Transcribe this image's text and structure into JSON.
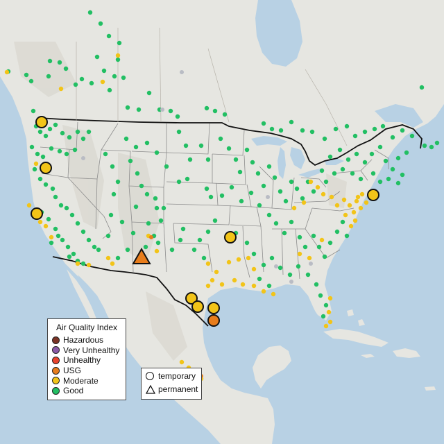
{
  "colors": {
    "hazardous": "#7a3326",
    "very_unhealthy": "#8a5aa8",
    "unhealthy": "#e8432e",
    "usg": "#e87d1c",
    "moderate": "#f2c418",
    "good": "#22bf63",
    "water": "#b8d1e4",
    "land": "#e7e7e2"
  },
  "legend": {
    "title": "Air Quality Index",
    "items": [
      {
        "label": "Hazardous",
        "color": "#7a3326"
      },
      {
        "label": "Very Unhealthy",
        "color": "#8a5aa8"
      },
      {
        "label": "Unhealthy",
        "color": "#e8432e"
      },
      {
        "label": "USG",
        "color": "#e87d1c"
      },
      {
        "label": "Moderate",
        "color": "#f2c418"
      },
      {
        "label": "Good",
        "color": "#22bf63"
      }
    ]
  },
  "shape_legend": {
    "temporary": "temporary",
    "permanent": "permanent"
  }
}
